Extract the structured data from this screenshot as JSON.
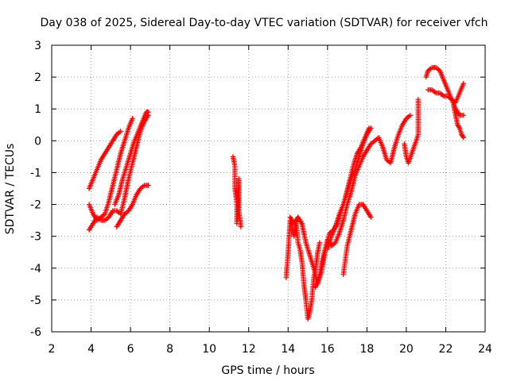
{
  "chart_data": {
    "type": "scatter",
    "title": "Day 038 of 2025, Sidereal Day-to-day VTEC variation (SDTVAR) for receiver vfch",
    "xlabel": "GPS time / hours",
    "ylabel": "SDTVAR / TECUs",
    "xlim": [
      2,
      24
    ],
    "ylim": [
      -6,
      3
    ],
    "x_ticks": [
      "2",
      "4",
      "6",
      "8",
      "10",
      "12",
      "14",
      "16",
      "18",
      "20",
      "22",
      "24"
    ],
    "y_ticks": [
      "3",
      "2",
      "1",
      "0",
      "-1",
      "-2",
      "-3",
      "-4",
      "-5",
      "-6"
    ],
    "grid": true,
    "marker": "plus",
    "color": "#ff0000",
    "series": [
      {
        "x": [
          3.9,
          4.1,
          4.3,
          4.5,
          4.7,
          4.9,
          5.1,
          5.3,
          5.5
        ],
        "values": [
          -1.5,
          -1.2,
          -0.9,
          -0.6,
          -0.4,
          -0.2,
          0.0,
          0.2,
          0.3
        ]
      },
      {
        "x": [
          3.9,
          4.1,
          4.3,
          4.5,
          4.7,
          4.9,
          5.1,
          5.3,
          5.5,
          5.7,
          5.9,
          6.1
        ],
        "values": [
          -2.0,
          -2.3,
          -2.5,
          -2.4,
          -2.3,
          -1.9,
          -1.4,
          -0.9,
          -0.4,
          0.0,
          0.4,
          0.7
        ]
      },
      {
        "x": [
          3.9,
          4.1,
          4.3,
          4.5,
          4.7,
          4.9,
          5.1,
          5.3,
          5.5,
          5.7,
          5.9,
          6.1,
          6.3,
          6.5,
          6.7,
          6.9
        ],
        "values": [
          -2.8,
          -2.6,
          -2.4,
          -2.5,
          -2.5,
          -2.4,
          -2.2,
          -2.2,
          -2.3,
          -1.8,
          -1.2,
          -0.7,
          -0.2,
          0.3,
          0.6,
          0.8
        ]
      },
      {
        "x": [
          5.2,
          5.4,
          5.6,
          5.8,
          6.0,
          6.2,
          6.4,
          6.6,
          6.8,
          6.9
        ],
        "values": [
          -2.0,
          -1.7,
          -1.2,
          -0.8,
          -0.4,
          0.0,
          0.3,
          0.6,
          0.9,
          0.9
        ]
      },
      {
        "x": [
          5.3,
          5.5,
          5.7,
          5.9,
          6.1,
          6.3,
          6.5,
          6.7,
          6.9
        ],
        "values": [
          -2.7,
          -2.5,
          -2.3,
          -2.2,
          -2.0,
          -1.7,
          -1.5,
          -1.4,
          -1.4
        ]
      },
      {
        "x": [
          11.2,
          11.3,
          11.3,
          11.4,
          11.4,
          11.5,
          11.5,
          11.6
        ],
        "values": [
          -0.5,
          -0.8,
          -1.5,
          -2.0,
          -2.6,
          -1.2,
          -2.2,
          -2.7
        ]
      },
      {
        "x": [
          13.9,
          14.0,
          14.1,
          14.2,
          14.3,
          14.4,
          14.5,
          14.6,
          14.7,
          14.8,
          14.9,
          15.0,
          15.1,
          15.2,
          15.3,
          15.4,
          15.5,
          15.6
        ],
        "values": [
          -4.3,
          -3.5,
          -2.5,
          -2.7,
          -3.0,
          -2.5,
          -3.2,
          -3.4,
          -3.8,
          -4.5,
          -5.0,
          -5.6,
          -5.4,
          -5.0,
          -4.3,
          -4.0,
          -3.5,
          -3.2
        ]
      },
      {
        "x": [
          14.1,
          14.3,
          14.5,
          14.7,
          14.9,
          15.1,
          15.3,
          15.5,
          15.7,
          15.9,
          16.1,
          16.3,
          16.5,
          16.7,
          16.9,
          17.1,
          17.3,
          17.5,
          17.7,
          17.9,
          18.1
        ],
        "values": [
          -2.4,
          -2.6,
          -2.4,
          -2.6,
          -3.2,
          -3.6,
          -4.0,
          -4.5,
          -4.1,
          -3.4,
          -2.9,
          -2.8,
          -2.6,
          -2.2,
          -1.8,
          -1.3,
          -0.8,
          -0.4,
          -0.2,
          0.1,
          0.4
        ]
      },
      {
        "x": [
          15.4,
          15.6,
          15.8,
          16.0,
          16.2,
          16.4,
          16.6,
          16.8,
          17.0,
          17.2,
          17.4,
          17.6,
          17.8,
          18.0,
          18.2,
          18.4,
          18.6,
          18.8,
          19.0,
          19.2,
          19.4,
          19.6,
          19.8,
          20.0,
          20.2
        ],
        "values": [
          -4.6,
          -4.2,
          -3.6,
          -3.1,
          -3.3,
          -3.2,
          -2.9,
          -2.5,
          -2.0,
          -1.6,
          -1.1,
          -0.8,
          -0.5,
          -0.3,
          -0.1,
          0.0,
          0.1,
          -0.2,
          -0.6,
          -0.7,
          -0.2,
          0.2,
          0.5,
          0.7,
          0.8
        ]
      },
      {
        "x": [
          16.0,
          16.2,
          16.4,
          16.6,
          16.8,
          17.0,
          17.2,
          17.4,
          17.6,
          17.8,
          18.0,
          18.2
        ],
        "values": [
          -3.4,
          -3.0,
          -2.7,
          -2.3,
          -2.0,
          -1.6,
          -1.2,
          -0.9,
          -0.5,
          -0.1,
          0.2,
          0.4
        ]
      },
      {
        "x": [
          16.8,
          17.0,
          17.2,
          17.4,
          17.6,
          17.8,
          18.0,
          18.2
        ],
        "values": [
          -4.2,
          -3.3,
          -2.8,
          -2.3,
          -2.0,
          -2.0,
          -2.2,
          -2.4
        ]
      },
      {
        "x": [
          19.9,
          20.0,
          20.1,
          20.5,
          20.6,
          20.6
        ],
        "values": [
          -0.1,
          -0.5,
          -0.7,
          0.0,
          0.2,
          1.3
        ]
      },
      {
        "x": [
          21.0,
          21.1,
          21.3,
          21.5,
          21.7,
          21.9,
          22.1,
          22.3,
          22.5,
          22.7,
          22.9
        ],
        "values": [
          2.0,
          2.2,
          2.3,
          2.3,
          2.2,
          1.9,
          1.6,
          1.3,
          1.2,
          1.5,
          1.8
        ]
      },
      {
        "x": [
          21.1,
          21.3,
          21.5,
          21.7,
          21.9,
          22.1,
          22.3,
          22.5,
          22.7,
          22.9
        ],
        "values": [
          1.6,
          1.6,
          1.5,
          1.5,
          1.4,
          1.4,
          1.3,
          1.0,
          0.8,
          0.8
        ]
      },
      {
        "x": [
          22.4,
          22.5,
          22.6,
          22.7,
          22.8,
          22.9
        ],
        "values": [
          1.1,
          0.8,
          0.5,
          0.4,
          0.2,
          0.1
        ]
      }
    ]
  }
}
